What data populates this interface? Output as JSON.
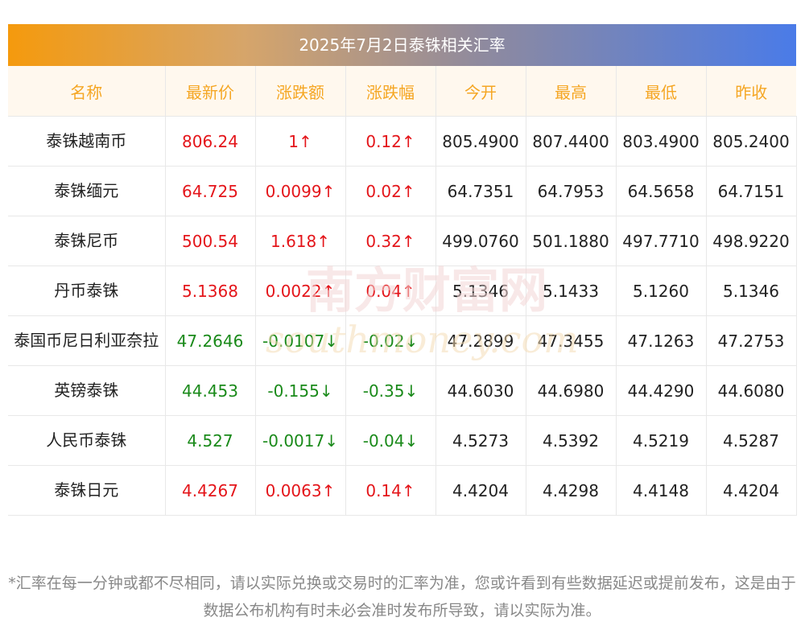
{
  "title": "2025年7月2日泰铢相关汇率",
  "columns": [
    "名称",
    "最新价",
    "涨跌额",
    "涨跌幅",
    "今开",
    "最高",
    "最低",
    "昨收"
  ],
  "rows": [
    {
      "name": "泰铢越南币",
      "latest": "806.24",
      "change": "1↑",
      "pct": "0.12↑",
      "open": "805.4900",
      "high": "807.4400",
      "low": "803.4900",
      "prev": "805.2400",
      "trend": "up"
    },
    {
      "name": "泰铢缅元",
      "latest": "64.725",
      "change": "0.0099↑",
      "pct": "0.02↑",
      "open": "64.7351",
      "high": "64.7953",
      "low": "64.5658",
      "prev": "64.7151",
      "trend": "up"
    },
    {
      "name": "泰铢尼币",
      "latest": "500.54",
      "change": "1.618↑",
      "pct": "0.32↑",
      "open": "499.0760",
      "high": "501.1880",
      "low": "497.7710",
      "prev": "498.9220",
      "trend": "up"
    },
    {
      "name": "丹币泰铢",
      "latest": "5.1368",
      "change": "0.0022↑",
      "pct": "0.04↑",
      "open": "5.1346",
      "high": "5.1433",
      "low": "5.1260",
      "prev": "5.1346",
      "trend": "up"
    },
    {
      "name": "泰国币尼日利亚奈拉",
      "latest": "47.2646",
      "change": "-0.0107↓",
      "pct": "-0.02↓",
      "open": "47.2899",
      "high": "47.3455",
      "low": "47.1263",
      "prev": "47.2753",
      "trend": "down"
    },
    {
      "name": "英镑泰铢",
      "latest": "44.453",
      "change": "-0.155↓",
      "pct": "-0.35↓",
      "open": "44.6030",
      "high": "44.6980",
      "low": "44.4290",
      "prev": "44.6080",
      "trend": "down"
    },
    {
      "name": "人民币泰铢",
      "latest": "4.527",
      "change": "-0.0017↓",
      "pct": "-0.04↓",
      "open": "4.5273",
      "high": "4.5392",
      "low": "4.5219",
      "prev": "4.5287",
      "trend": "down"
    },
    {
      "name": "泰铢日元",
      "latest": "4.4267",
      "change": "0.0063↑",
      "pct": "0.14↑",
      "open": "4.4204",
      "high": "4.4298",
      "low": "4.4148",
      "prev": "4.4204",
      "trend": "up"
    }
  ],
  "note": "*汇率在每一分钟或都不尽相同，请以实际兑换或交易时的汇率为准，您或许看到有些数据延迟或提前发布，这是由于数据公布机构有时未必会准时发布所导致，请以实际为准。",
  "watermark": {
    "cn": "南方财富网",
    "en": "southmoney.com"
  },
  "colors": {
    "up": "#e4151a",
    "down": "#1a8a1a",
    "header_text": "#f5a623",
    "header_bg": "#fff8ee"
  }
}
